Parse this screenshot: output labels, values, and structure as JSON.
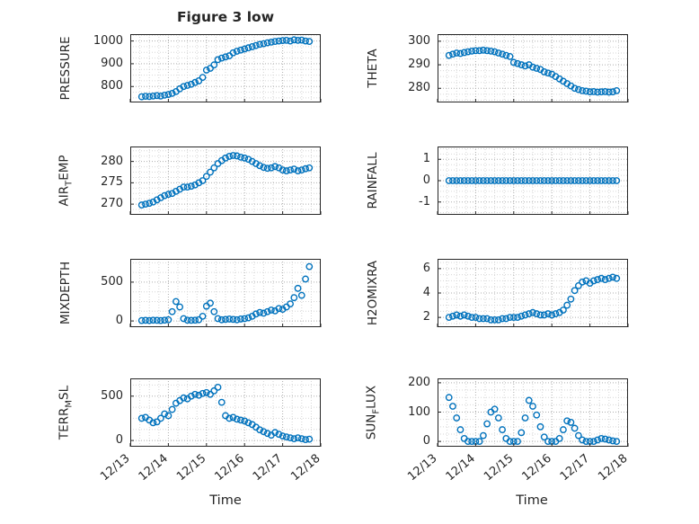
{
  "title": "Figure 3 low",
  "xlabel": "Time",
  "accent_color": "#0072BD",
  "marker": "open-circle",
  "x_tick_labels": [
    "12/13",
    "12/14",
    "12/15",
    "12/16",
    "12/17",
    "12/18"
  ],
  "x_tick_values": [
    0,
    1,
    2,
    3,
    4,
    5
  ],
  "xlim": [
    0,
    5
  ],
  "x_days": [
    0.3,
    0.4,
    0.5,
    0.6,
    0.7,
    0.8,
    0.9,
    1.0,
    1.1,
    1.2,
    1.3,
    1.4,
    1.5,
    1.6,
    1.7,
    1.8,
    1.9,
    2.0,
    2.1,
    2.2,
    2.3,
    2.4,
    2.5,
    2.6,
    2.7,
    2.8,
    2.9,
    3.0,
    3.1,
    3.2,
    3.3,
    3.4,
    3.5,
    3.6,
    3.7,
    3.8,
    3.9,
    4.0,
    4.1,
    4.2,
    4.3,
    4.4,
    4.5,
    4.6,
    4.7
  ],
  "chart_data": [
    {
      "type": "scatter",
      "name": "pressure",
      "ylabel": [
        {
          "t": "PRESSURE",
          "sub": false
        }
      ],
      "yticks": [
        800,
        900,
        1000
      ],
      "ylim": [
        730,
        1030
      ],
      "y": [
        755,
        757,
        756,
        758,
        760,
        758,
        762,
        765,
        770,
        778,
        790,
        800,
        805,
        810,
        818,
        825,
        840,
        872,
        880,
        895,
        918,
        925,
        930,
        935,
        948,
        955,
        960,
        965,
        970,
        975,
        980,
        985,
        988,
        992,
        995,
        998,
        1000,
        1002,
        1003,
        1000,
        1005,
        1003,
        1004,
        1000,
        998
      ]
    },
    {
      "type": "scatter",
      "name": "theta",
      "ylabel": [
        {
          "t": "THETA",
          "sub": false
        }
      ],
      "yticks": [
        280,
        290,
        300
      ],
      "ylim": [
        274,
        303
      ],
      "y": [
        294,
        294.5,
        295,
        294.8,
        295.2,
        295.5,
        295.8,
        296,
        296,
        296.2,
        296,
        295.8,
        295.5,
        295,
        294.5,
        294,
        293.5,
        291,
        290.5,
        290,
        289.5,
        290,
        289,
        288.5,
        288,
        287,
        286.5,
        286,
        285,
        284,
        283,
        282,
        281,
        280,
        279.5,
        279,
        278.8,
        278.5,
        278.6,
        278.4,
        278.5,
        278.6,
        278.4,
        278.5,
        279
      ]
    },
    {
      "type": "scatter",
      "name": "air-temp",
      "ylabel": [
        {
          "t": "AIR",
          "sub": false
        },
        {
          "t": "T",
          "sub": true
        },
        {
          "t": "EMP",
          "sub": false
        }
      ],
      "yticks": [
        270,
        275,
        280
      ],
      "ylim": [
        267.5,
        283.5
      ],
      "y": [
        269.8,
        270,
        270.2,
        270.5,
        271,
        271.5,
        272,
        272.3,
        272.5,
        273,
        273.5,
        274,
        274,
        274.2,
        274.5,
        275,
        275.5,
        276.5,
        277.5,
        278.5,
        279.5,
        280.2,
        280.8,
        281.2,
        281.4,
        281.3,
        281,
        280.8,
        280.5,
        280,
        279.5,
        279,
        278.6,
        278.4,
        278.5,
        278.8,
        278.5,
        278,
        277.8,
        278,
        278.2,
        277.8,
        278,
        278.3,
        278.5
      ]
    },
    {
      "type": "scatter",
      "name": "rainfall",
      "ylabel": [
        {
          "t": "RAINFALL",
          "sub": false
        }
      ],
      "yticks": [
        -1,
        0,
        1
      ],
      "ylim": [
        -1.6,
        1.6
      ],
      "y": [
        0,
        0,
        0,
        0,
        0,
        0,
        0,
        0,
        0,
        0,
        0,
        0,
        0,
        0,
        0,
        0,
        0,
        0,
        0,
        0,
        0,
        0,
        0,
        0,
        0,
        0,
        0,
        0,
        0,
        0,
        0,
        0,
        0,
        0,
        0,
        0,
        0,
        0,
        0,
        0,
        0,
        0,
        0,
        0,
        0
      ]
    },
    {
      "type": "scatter",
      "name": "mixdepth",
      "ylabel": [
        {
          "t": "MIXDEPTH",
          "sub": false
        }
      ],
      "yticks": [
        0,
        500
      ],
      "ylim": [
        -80,
        800
      ],
      "y": [
        5,
        8,
        5,
        10,
        8,
        5,
        10,
        15,
        120,
        250,
        180,
        30,
        10,
        8,
        10,
        15,
        60,
        190,
        230,
        120,
        30,
        15,
        20,
        25,
        20,
        15,
        25,
        30,
        40,
        60,
        90,
        110,
        100,
        120,
        140,
        130,
        160,
        150,
        180,
        220,
        300,
        420,
        330,
        540,
        700
      ]
    },
    {
      "type": "scatter",
      "name": "h2omixra",
      "ylabel": [
        {
          "t": "H2OMIXRA",
          "sub": false
        }
      ],
      "yticks": [
        2,
        4,
        6
      ],
      "ylim": [
        1.2,
        6.8
      ],
      "y": [
        2.0,
        2.1,
        2.2,
        2.1,
        2.2,
        2.1,
        2.0,
        2.0,
        1.9,
        1.9,
        1.9,
        1.8,
        1.8,
        1.8,
        1.9,
        1.9,
        2.0,
        2.0,
        2.0,
        2.1,
        2.2,
        2.3,
        2.4,
        2.3,
        2.2,
        2.2,
        2.3,
        2.2,
        2.3,
        2.4,
        2.6,
        3.0,
        3.5,
        4.2,
        4.6,
        4.9,
        5.0,
        4.8,
        5.0,
        5.1,
        5.2,
        5.1,
        5.2,
        5.3,
        5.2
      ]
    },
    {
      "type": "scatter",
      "name": "terr-msl",
      "ylabel": [
        {
          "t": "TERR",
          "sub": false
        },
        {
          "t": "M",
          "sub": true
        },
        {
          "t": "SL",
          "sub": false
        }
      ],
      "yticks": [
        0,
        500
      ],
      "ylim": [
        -70,
        700
      ],
      "y": [
        250,
        260,
        230,
        200,
        210,
        250,
        300,
        280,
        350,
        420,
        450,
        480,
        470,
        500,
        520,
        510,
        530,
        540,
        520,
        560,
        600,
        430,
        280,
        250,
        260,
        240,
        230,
        220,
        200,
        180,
        150,
        120,
        100,
        80,
        60,
        90,
        70,
        50,
        40,
        30,
        20,
        30,
        20,
        10,
        15
      ]
    },
    {
      "type": "scatter",
      "name": "sun-flux",
      "ylabel": [
        {
          "t": "SUN",
          "sub": false
        },
        {
          "t": "F",
          "sub": true
        },
        {
          "t": "LUX",
          "sub": false
        }
      ],
      "yticks": [
        0,
        100,
        200
      ],
      "ylim": [
        -18,
        215
      ],
      "y": [
        150,
        120,
        80,
        40,
        10,
        0,
        0,
        0,
        0,
        20,
        60,
        100,
        110,
        80,
        40,
        10,
        0,
        0,
        0,
        30,
        80,
        140,
        120,
        90,
        50,
        15,
        0,
        0,
        0,
        10,
        40,
        70,
        65,
        45,
        20,
        5,
        0,
        0,
        0,
        5,
        10,
        8,
        5,
        2,
        0
      ]
    }
  ]
}
